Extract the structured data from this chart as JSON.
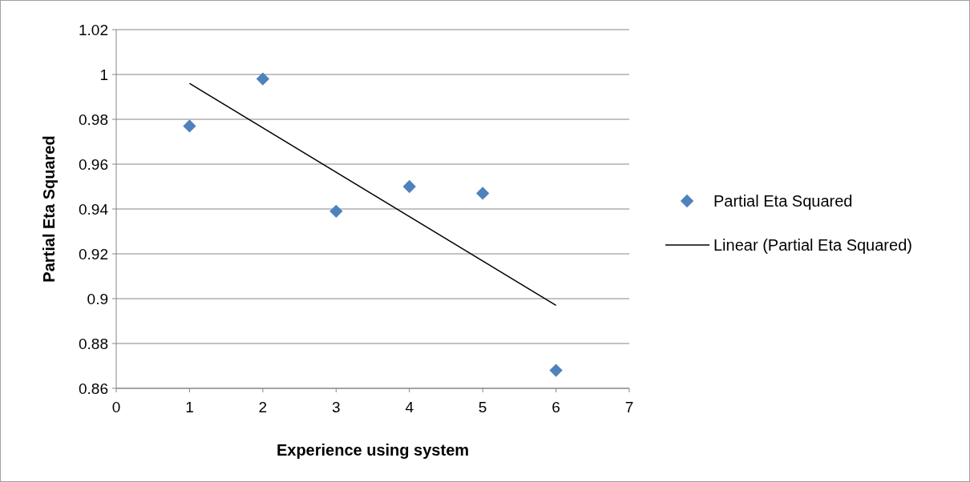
{
  "chart_data": {
    "type": "scatter",
    "xlabel": "Experience using system",
    "ylabel": "Partial Eta Squared",
    "xlim": [
      0,
      7
    ],
    "xticks": [
      0,
      1,
      2,
      3,
      4,
      5,
      6,
      7
    ],
    "ylim": [
      0.86,
      1.02
    ],
    "yticks": [
      0.86,
      0.88,
      0.9,
      0.92,
      0.94,
      0.96,
      0.98,
      1,
      1.02
    ],
    "grid": "y",
    "legend": "right",
    "marker": "diamond",
    "series": [
      {
        "name": "Partial Eta Squared",
        "color": "#4f81bd",
        "x": [
          1,
          2,
          3,
          4,
          5,
          6
        ],
        "values": [
          0.977,
          0.998,
          0.939,
          0.95,
          0.947,
          0.868
        ]
      },
      {
        "name": "Linear (Partial Eta Squared)",
        "type": "line",
        "color": "#000000",
        "marker": "none",
        "line_style": "solid",
        "x": [
          1,
          6
        ],
        "values": [
          0.996,
          0.897
        ]
      }
    ]
  }
}
